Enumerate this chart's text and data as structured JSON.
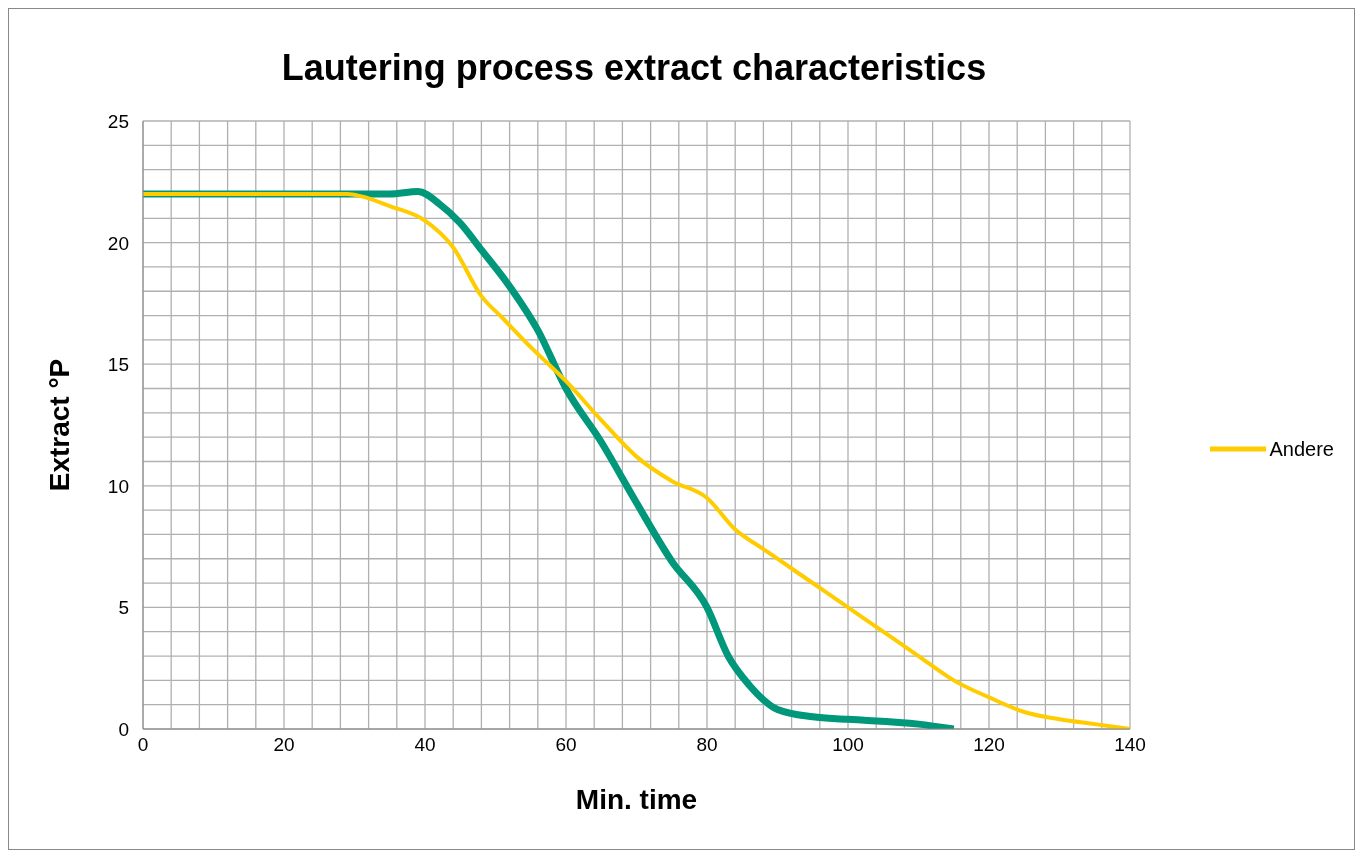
{
  "chart_data": {
    "type": "line",
    "title": "Lautering process extract characteristics",
    "xlabel": "Min. time",
    "ylabel": "Extract °P",
    "series": [
      {
        "color": "#00977a",
        "x": [
          0,
          30,
          35,
          39,
          42,
          45,
          48,
          52,
          56,
          60,
          65,
          70,
          75,
          80,
          83,
          86,
          90,
          95,
          100,
          110,
          115
        ],
        "values": [
          22,
          22,
          22,
          22.1,
          21.6,
          20.8,
          19.7,
          18.2,
          16.4,
          14,
          11.8,
          9.3,
          6.9,
          5,
          3,
          1.8,
          0.8,
          0.5,
          0.4,
          0.2,
          0
        ]
      },
      {
        "name": "Andere",
        "color": "#ffcc00",
        "x": [
          0,
          29,
          31,
          35,
          40,
          44,
          48,
          51,
          55,
          60,
          65,
          70,
          75,
          80,
          84,
          88,
          92,
          96,
          100,
          105,
          110,
          115,
          120,
          125,
          130,
          135,
          140
        ],
        "values": [
          22,
          22,
          21.9,
          21.5,
          20.9,
          19.8,
          17.8,
          16.9,
          15.7,
          14.3,
          12.7,
          11.2,
          10.2,
          9.5,
          8.2,
          7.4,
          6.6,
          5.8,
          5,
          4,
          3,
          2,
          1.3,
          0.7,
          0.4,
          0.2,
          0
        ]
      }
    ],
    "xlim": [
      0,
      140
    ],
    "xticks": [
      0,
      {
        "value": 4,
        "label": null
      },
      {
        "value": 8,
        "label": null
      },
      {
        "value": 12,
        "label": null
      },
      {
        "value": 16,
        "label": null
      },
      20,
      {
        "value": 24,
        "label": null
      },
      {
        "value": 28,
        "label": null
      },
      {
        "value": 32,
        "label": null
      },
      {
        "value": 36,
        "label": null
      },
      40,
      {
        "value": 44,
        "label": null
      },
      {
        "value": 48,
        "label": null
      },
      {
        "value": 52,
        "label": null
      },
      {
        "value": 56,
        "label": null
      },
      60,
      {
        "value": 64,
        "label": null
      },
      {
        "value": 68,
        "label": null
      },
      {
        "value": 72,
        "label": null
      },
      {
        "value": 76,
        "label": null
      },
      80,
      {
        "value": 84,
        "label": null
      },
      {
        "value": 88,
        "label": null
      },
      {
        "value": 92,
        "label": null
      },
      {
        "value": 96,
        "label": null
      },
      100,
      {
        "value": 104,
        "label": null
      },
      {
        "value": 108,
        "label": null
      },
      {
        "value": 112,
        "label": null
      },
      {
        "value": 116,
        "label": null
      },
      120,
      {
        "value": 124,
        "label": null
      },
      {
        "value": 128,
        "label": null
      },
      {
        "value": 132,
        "label": null
      },
      {
        "value": 136,
        "label": null
      },
      140
    ],
    "ylim": [
      0,
      25
    ],
    "yticks": [
      0,
      {
        "value": 1,
        "label": null
      },
      {
        "value": 2,
        "label": null
      },
      {
        "value": 3,
        "label": null
      },
      {
        "value": 4,
        "label": null
      },
      5,
      {
        "value": 6,
        "label": null
      },
      {
        "value": 7,
        "label": null
      },
      {
        "value": 8,
        "label": null
      },
      {
        "value": 9,
        "label": null
      },
      10,
      {
        "value": 11,
        "label": null
      },
      {
        "value": 12,
        "label": null
      },
      {
        "value": 13,
        "label": null
      },
      {
        "value": 14,
        "label": null
      },
      15,
      {
        "value": 16,
        "label": null
      },
      {
        "value": 17,
        "label": null
      },
      {
        "value": 18,
        "label": null
      },
      {
        "value": 19,
        "label": null
      },
      20,
      {
        "value": 21,
        "label": null
      },
      {
        "value": 22,
        "label": null
      },
      {
        "value": 23,
        "label": null
      },
      {
        "value": 24,
        "label": null
      },
      25
    ],
    "grid": true,
    "legend": "right",
    "marker": "none",
    "line_style": "solid"
  }
}
